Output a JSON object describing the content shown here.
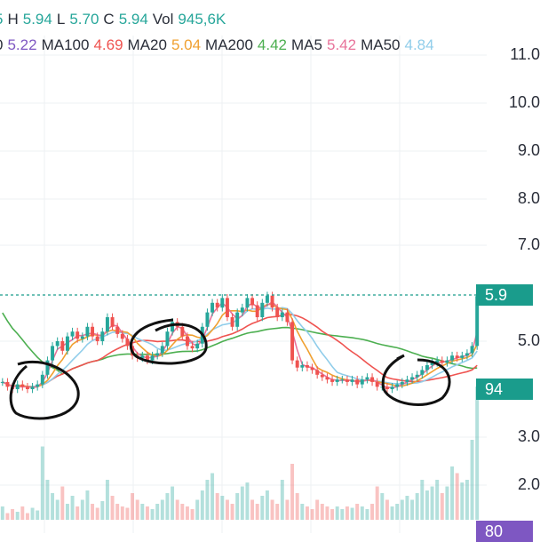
{
  "legend": {
    "row1": [
      {
        "label": "",
        "value": "5",
        "color": "#26a69a"
      },
      {
        "label": "H",
        "value": "5.94",
        "color": "#26a69a"
      },
      {
        "label": "L",
        "value": "5.70",
        "color": "#26a69a"
      },
      {
        "label": "C",
        "value": "5.94",
        "color": "#26a69a"
      },
      {
        "label": "Vol",
        "value": "945,6K",
        "color": "#26a69a"
      }
    ],
    "row2": [
      {
        "label": "0",
        "value": "5.22",
        "color": "#7e57c2"
      },
      {
        "label": "MA100",
        "value": "4.69",
        "color": "#ef5350"
      },
      {
        "label": "MA20",
        "value": "5.04",
        "color": "#f0a030"
      },
      {
        "label": "MA200",
        "value": "4.42",
        "color": "#4caf50"
      },
      {
        "label": "MA5",
        "value": "5.42",
        "color": "#e8739a"
      },
      {
        "label": "MA50",
        "value": "4.84",
        "color": "#90cdea"
      }
    ]
  },
  "price_axis": {
    "labels": [
      "11.0",
      "10.0",
      "9.0",
      "8.0",
      "7.0",
      "5.0",
      "3.0",
      "2.0"
    ]
  },
  "tags": {
    "last_price": {
      "text": "5.9",
      "color": "#1a9c8c"
    },
    "volume": {
      "text": "94",
      "color": "#1a9c8c"
    },
    "bottom": {
      "text": "80",
      "color": "#7e57c2"
    }
  },
  "colors": {
    "up": "#26a69a",
    "down": "#ef5350",
    "ma5": "#e8739a",
    "ma20": "#f0a030",
    "ma50": "#90cdea",
    "ma100": "#ef5350",
    "ma200": "#4caf50",
    "grid": "#eef0f3",
    "price_line": "#1a9c8c"
  },
  "chart_data": {
    "type": "candlestick",
    "y_axis_ticks": [
      11.0,
      10.0,
      9.0,
      8.0,
      7.0,
      5.0,
      3.0,
      2.0
    ],
    "last_price_line": 5.94,
    "close": [
      4.15,
      4.05,
      4.0,
      4.1,
      4.05,
      4.0,
      4.05,
      4.1,
      4.3,
      4.6,
      4.9,
      5.0,
      4.8,
      5.1,
      5.2,
      5.05,
      5.1,
      5.3,
      5.1,
      5.0,
      5.2,
      5.5,
      5.3,
      5.15,
      5.05,
      4.9,
      4.7,
      4.65,
      4.7,
      4.6,
      4.7,
      4.75,
      4.9,
      5.2,
      5.4,
      5.3,
      5.1,
      4.9,
      4.85,
      4.95,
      5.3,
      5.6,
      5.8,
      5.7,
      5.9,
      5.5,
      5.3,
      5.6,
      5.7,
      5.9,
      5.75,
      5.5,
      5.8,
      5.95,
      5.7,
      5.5,
      5.6,
      5.4,
      4.6,
      4.45,
      4.5,
      4.45,
      4.4,
      4.3,
      4.25,
      4.2,
      4.15,
      4.2,
      4.2,
      4.15,
      4.2,
      4.1,
      4.2,
      4.25,
      4.15,
      4.05,
      4.05,
      4.0,
      4.05,
      4.1,
      4.15,
      4.2,
      4.25,
      4.3,
      4.4,
      4.5,
      4.55,
      4.6,
      4.55,
      4.6,
      4.7,
      4.65,
      4.7,
      4.75,
      4.9,
      5.94
    ],
    "volume_relative": [
      0.1,
      0.05,
      0.08,
      0.06,
      0.1,
      0.05,
      0.09,
      0.07,
      0.55,
      0.3,
      0.2,
      0.15,
      0.25,
      0.12,
      0.18,
      0.1,
      0.15,
      0.22,
      0.12,
      0.09,
      0.14,
      0.3,
      0.18,
      0.12,
      0.1,
      0.09,
      0.2,
      0.15,
      0.12,
      0.1,
      0.08,
      0.12,
      0.15,
      0.2,
      0.25,
      0.15,
      0.12,
      0.1,
      0.08,
      0.15,
      0.22,
      0.3,
      0.35,
      0.2,
      0.18,
      0.15,
      0.12,
      0.2,
      0.25,
      0.28,
      0.15,
      0.12,
      0.18,
      0.22,
      0.15,
      0.12,
      0.3,
      0.15,
      0.42,
      0.2,
      0.12,
      0.1,
      0.08,
      0.15,
      0.12,
      0.1,
      0.08,
      0.1,
      0.08,
      0.1,
      0.09,
      0.12,
      0.1,
      0.08,
      0.12,
      0.25,
      0.2,
      0.15,
      0.1,
      0.12,
      0.15,
      0.18,
      0.15,
      0.2,
      0.3,
      0.22,
      0.25,
      0.3,
      0.2,
      0.25,
      0.4,
      0.35,
      0.28,
      0.3,
      0.6,
      1.0
    ]
  }
}
